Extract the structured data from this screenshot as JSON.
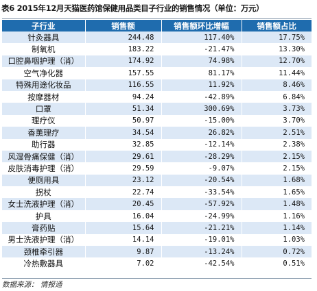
{
  "title": "表6  2015年12月天猫医药馆保健用品类目子行业的销售情况（单位：万元）",
  "headers": [
    "子行业",
    "销售额",
    "销售额环比增幅",
    "销售额占比"
  ],
  "rows": [
    {
      "name": "针灸器具",
      "sales": "244.48",
      "mom": "117.40%",
      "share": "17.75%"
    },
    {
      "name": "制氧机",
      "sales": "183.22",
      "mom": "-21.47%",
      "share": "13.30%"
    },
    {
      "name": "口腔鼻咽护理（消）",
      "sales": "174.92",
      "mom": "74.98%",
      "share": "12.70%"
    },
    {
      "name": "空气净化器",
      "sales": "157.55",
      "mom": "81.17%",
      "share": "11.44%"
    },
    {
      "name": "特殊用途化妆品",
      "sales": "116.55",
      "mom": "11.92%",
      "share": "8.46%"
    },
    {
      "name": "按摩器材",
      "sales": "94.24",
      "mom": "-42.89%",
      "share": "6.84%"
    },
    {
      "name": "口罩",
      "sales": "51.34",
      "mom": "300.69%",
      "share": "3.73%"
    },
    {
      "name": "理疗仪",
      "sales": "50.97",
      "mom": "-15.00%",
      "share": "3.70%"
    },
    {
      "name": "香薰理疗",
      "sales": "34.54",
      "mom": "26.82%",
      "share": "2.51%"
    },
    {
      "name": "助行器",
      "sales": "32.85",
      "mom": "-12.14%",
      "share": "2.38%"
    },
    {
      "name": "风湿骨痛保健（消）",
      "sales": "29.61",
      "mom": "-28.29%",
      "share": "2.15%"
    },
    {
      "name": "皮肤消毒护理（消）",
      "sales": "29.59",
      "mom": "-9.07%",
      "share": "2.15%"
    },
    {
      "name": "便厕用具",
      "sales": "23.12",
      "mom": "-20.54%",
      "share": "1.68%"
    },
    {
      "name": "拐杖",
      "sales": "22.74",
      "mom": "-33.54%",
      "share": "1.65%"
    },
    {
      "name": "女士洗液护理（消）",
      "sales": "20.45",
      "mom": "-57.92%",
      "share": "1.48%"
    },
    {
      "name": "护具",
      "sales": "16.04",
      "mom": "-24.99%",
      "share": "1.16%"
    },
    {
      "name": "膏药贴",
      "sales": "15.64",
      "mom": "-21.21%",
      "share": "1.14%"
    },
    {
      "name": "男士洗液护理（消）",
      "sales": "14.14",
      "mom": "-19.01%",
      "share": "1.03%"
    },
    {
      "name": "颈椎牵引器",
      "sales": "9.87",
      "mom": "-13.24%",
      "share": "0.72%"
    },
    {
      "name": "冷热敷器具",
      "sales": "7.02",
      "mom": "-42.54%",
      "share": "0.51%"
    }
  ],
  "source": "数据来源：  情报通"
}
